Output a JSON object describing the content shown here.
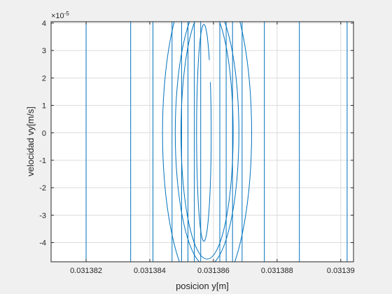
{
  "chart_data": {
    "type": "line",
    "title": "",
    "xlabel": "posicion y[m]",
    "ylabel": "velocidad vy[m/s]",
    "xlim": [
      0.0313809,
      0.0313904
    ],
    "ylim": [
      -4.7e-05,
      4.05e-05
    ],
    "grid": true,
    "x_ticks": [
      0.031382,
      0.031384,
      0.031386,
      0.031388,
      0.03139
    ],
    "x_tick_labels": [
      "0.031382",
      "0.031384",
      "0.031386",
      "0.031388",
      "0.03139"
    ],
    "y_ticks": [
      4,
      3,
      2,
      1,
      0,
      -1,
      -2,
      -3,
      -4
    ],
    "y_tick_labels": [
      "4",
      "3",
      "2",
      "1",
      "0",
      "-1",
      "-2",
      "-3",
      "-4"
    ],
    "y_exponent_label": "×10",
    "y_exponent_power": "-5",
    "series": [
      {
        "color": "#0072bd",
        "description_values": "nested elliptical trajectories in phase space centered near y=0.0313858",
        "curves": [
          {
            "kind": "closed",
            "center_x": 0.0313858,
            "center_y": 0.0,
            "half_width_x": 8.2e-07,
            "half_height_y": 4.6e-05
          },
          {
            "kind": "closed",
            "center_x": 0.0313858,
            "center_y": 0.0,
            "half_width_x": 1e-06,
            "half_height_y": 4.85e-05
          },
          {
            "kind": "closed",
            "center_x": 0.0313858,
            "center_y": 0.0,
            "half_width_x": 1.4e-06,
            "half_height_y": 6e-05
          },
          {
            "kind": "open_loop",
            "center_x": 0.0313857,
            "center_y": 0.0,
            "half_width_x": 2.3e-07,
            "half_height_y": 3.95e-05,
            "start_y": 2.65e-05
          }
        ],
        "vertical_crossings_x": [
          0.031382,
          0.0313834,
          0.0313841,
          0.0313847,
          0.031385,
          0.0313852,
          0.0313854,
          0.0313856,
          0.0313862,
          0.0313864,
          0.0313866,
          0.0313869,
          0.0313876,
          0.0313887,
          0.0313902
        ]
      }
    ]
  }
}
